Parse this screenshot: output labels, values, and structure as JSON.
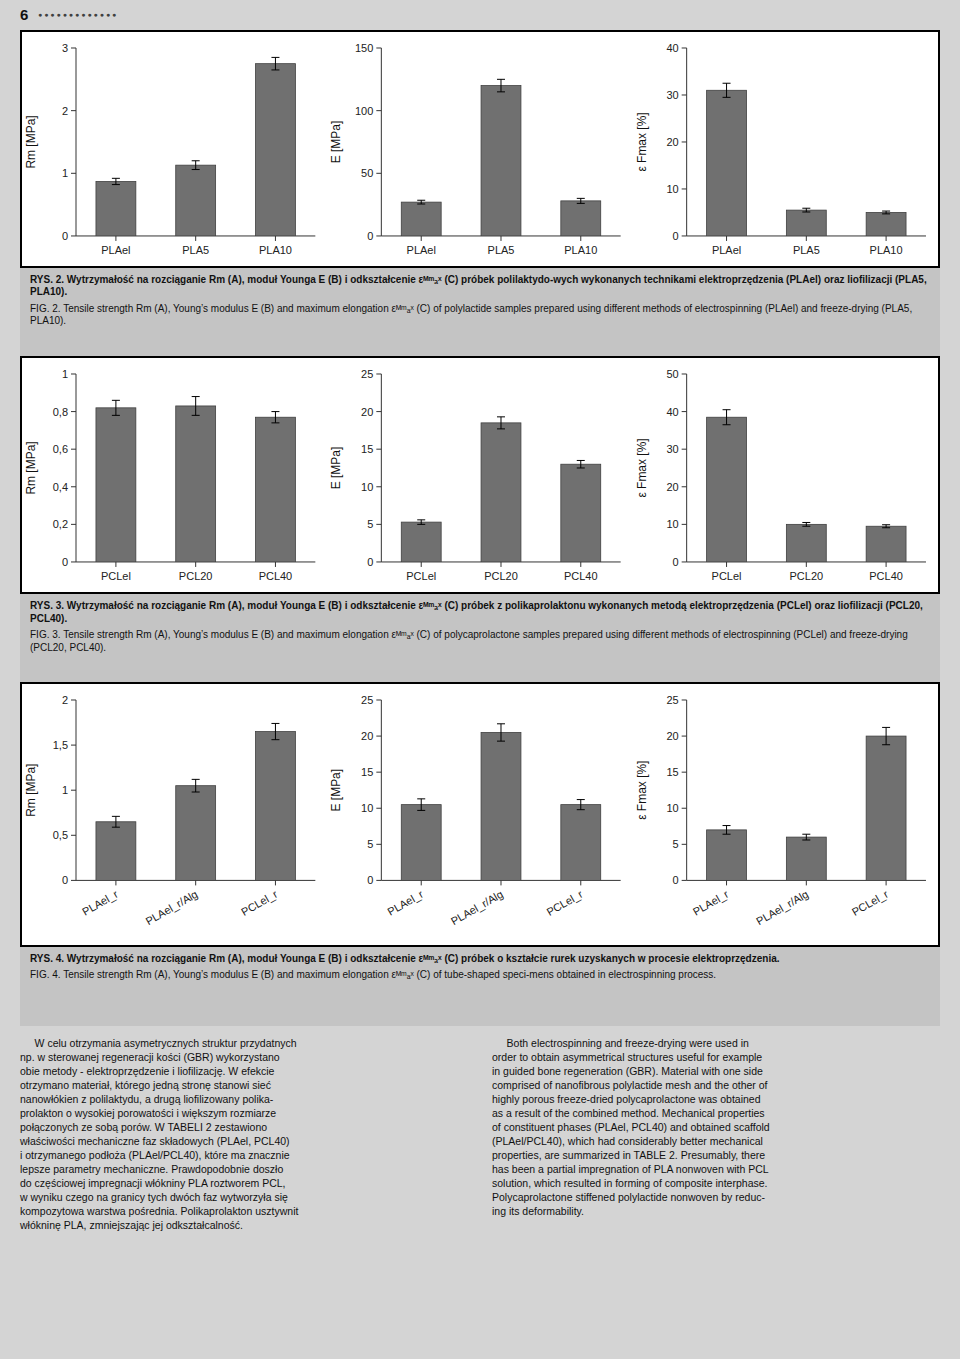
{
  "page_number": "6",
  "ornament": "● ● ● ● ● ● ● ● ● ● ● ● ●",
  "chart_data": [
    {
      "type": "bar",
      "ylabel": "Rm [MPa]",
      "categories": [
        "PLAel",
        "PLA5",
        "PLA10"
      ],
      "values": [
        0.87,
        1.13,
        2.75
      ],
      "errors": [
        0.05,
        0.07,
        0.1
      ],
      "color": "#707070",
      "ylim": [
        0,
        3
      ],
      "yticks": [
        0,
        1,
        2,
        3
      ]
    },
    {
      "type": "bar",
      "ylabel": "E [MPa]",
      "categories": [
        "PLAel",
        "PLA5",
        "PLA10"
      ],
      "values": [
        27.0,
        120.0,
        28.0
      ],
      "errors": [
        1.5,
        5.0,
        2.0
      ],
      "color": "#707070",
      "ylim": [
        0,
        150
      ],
      "yticks": [
        0,
        50,
        100,
        150
      ]
    },
    {
      "type": "bar",
      "ylabel": "ε Fmax [%]",
      "categories": [
        "PLAel",
        "PLA5",
        "PLA10"
      ],
      "values": [
        31.0,
        5.5,
        5.0
      ],
      "errors": [
        1.5,
        0.4,
        0.3
      ],
      "color": "#707070",
      "ylim": [
        0,
        40
      ],
      "yticks": [
        0,
        10,
        20,
        30,
        40
      ]
    },
    {
      "type": "bar",
      "ylabel": "Rm [MPa]",
      "categories": [
        "PCLel",
        "PCL20",
        "PCL40"
      ],
      "values": [
        0.82,
        0.83,
        0.77
      ],
      "errors": [
        0.04,
        0.05,
        0.03
      ],
      "color": "#707070",
      "ylim": [
        0,
        1
      ],
      "yticks": [
        0,
        {
          "value": 0.2,
          "label": "0,2"
        },
        {
          "value": 0.4,
          "label": "0,4"
        },
        {
          "value": 0.6,
          "label": "0,6"
        },
        {
          "value": 0.8,
          "label": "0,8"
        },
        1
      ]
    },
    {
      "type": "bar",
      "ylabel": "E [MPa]",
      "categories": [
        "PCLel",
        "PCL20",
        "PCL40"
      ],
      "values": [
        5.3,
        18.5,
        13.0
      ],
      "errors": [
        0.3,
        0.8,
        0.5
      ],
      "color": "#707070",
      "ylim": [
        0,
        25
      ],
      "yticks": [
        0,
        5,
        10,
        15,
        20,
        25
      ]
    },
    {
      "type": "bar",
      "ylabel": "ε Fmax [%]",
      "categories": [
        "PCLel",
        "PCL20",
        "PCL40"
      ],
      "values": [
        38.5,
        10.0,
        9.5
      ],
      "errors": [
        2.0,
        0.5,
        0.4
      ],
      "color": "#707070",
      "ylim": [
        0,
        50
      ],
      "yticks": [
        0,
        10,
        20,
        30,
        40,
        50
      ]
    },
    {
      "type": "bar",
      "ylabel": "Rm [MPa]",
      "categories": [
        "PLAel_r",
        "PLAel_r/Alg",
        "PCLel_r"
      ],
      "values": [
        0.65,
        1.05,
        1.65
      ],
      "errors": [
        0.06,
        0.07,
        0.09
      ],
      "color": "#707070",
      "ylim": [
        0,
        2
      ],
      "yticks": [
        0,
        {
          "value": 0.5,
          "label": "0,5"
        },
        1,
        {
          "value": 1.5,
          "label": "1,5"
        },
        2
      ]
    },
    {
      "type": "bar",
      "ylabel": "E [MPa]",
      "categories": [
        "PLAel_r",
        "PLAel_r/Alg",
        "PCLel_r"
      ],
      "values": [
        10.5,
        20.5,
        10.5
      ],
      "errors": [
        0.8,
        1.2,
        0.7
      ],
      "color": "#707070",
      "ylim": [
        0,
        25
      ],
      "yticks": [
        0,
        5,
        10,
        15,
        20,
        25
      ]
    },
    {
      "type": "bar",
      "ylabel": "ε Fmax [%]",
      "categories": [
        "PLAel_r",
        "PLAel_r/Alg",
        "PCLel_r"
      ],
      "values": [
        7.0,
        6.0,
        20.0
      ],
      "errors": [
        0.6,
        0.4,
        1.2
      ],
      "color": "#707070",
      "ylim": [
        0,
        25
      ],
      "yticks": [
        0,
        5,
        10,
        15,
        20,
        25
      ]
    }
  ],
  "captions": [
    {
      "bold": "RYS. 2. Wytrzymałość na rozciąganie Rm (A), moduł Younga E (B) i odkształcenie εᴹᵐₐˣ (C) próbek polilaktydo-wych wykonanych technikami elektroprzędzenia (PLAel) oraz liofilizacji (PLA5, PLA10).",
      "text": "FIG. 2. Tensile strength Rm (A), Young’s modulus E (B) and maximum elongation εᴹᵐₐˣ (C) of polylactide samples prepared using different methods of electrospinning (PLAel) and freeze-drying (PLA5, PLA10)."
    },
    {
      "bold": "RYS. 3. Wytrzymałość na rozciąganie Rm (A), moduł Younga E (B) i odkształcenie εᴹᵐₐˣ (C) próbek z polikaprolaktonu wykonanych metodą elektroprzędzenia (PCLel) oraz liofilizacji (PCL20, PCL40).",
      "text": "FIG. 3. Tensile strength Rm (A), Young’s modulus E (B) and maximum elongation εᴹᵐₐˣ (C) of polycaprolactone samples prepared using different methods of electrospinning (PCLel) and freeze-drying (PCL20, PCL40)."
    },
    {
      "bold": "RYS. 4. Wytrzymałość na rozciąganie Rm (A), moduł Younga E (B) i odkształcenie εᴹᵐₐˣ (C) próbek o kształcie rurek uzyskanych w procesie elektroprzędzenia.",
      "text": "FIG. 4. Tensile strength Rm (A), Young’s modulus E (B) and maximum elongation εᴹᵐₐˣ (C) of tube-shaped speci-mens obtained in electrospinning process."
    }
  ],
  "body_text": [
    "     W celu otrzymania asymetrycznych struktur przydatnych\nnp. w sterowanej regeneracji kości (GBR) wykorzystano\nobie metody - elektroprzędzenie i liofilizację. W efekcie\notrzymano materiał, którego jedną stronę stanowi sieć\nnanowłókien z polilaktydu, a drugą liofilizowany polika-\nprolakton o wysokiej porowatości i większym rozmiarze\npołączonych ze sobą porów. W TABELI 2 zestawiono\nwłaściwości mechaniczne faz składowych (PLAel, PCL40)\ni otrzymanego podłoża (PLAel/PCL40), które ma znacznie\nlepsze parametry mechaniczne. Prawdopodobnie doszło\ndo częściowej impregnacji włókniny PLA roztworem PCL,\nw wyniku czego na granicy tych dwóch faz wytworzyła się\nkompozytowa warstwa pośrednia. Polikaprolakton usztywnit\nwłókninę PLA, zmniejszając jej odkształcalność.",
    "     Both electrospinning and freeze-drying were used in\norder to obtain asymmetrical structures useful for example\nin guided bone regeneration (GBR). Material with one side\ncomprised of nanofibrous polylactide mesh and the other of\nhighly porous freeze-dried polycaprolactone was obtained\nas a result of the combined method. Mechanical properties\nof constituent phases (PLAel, PCL40) and obtained scaffold\n(PLAel/PCL40), which had considerably better mechanical\nproperties, are summarized in TABLE 2. Presumably, there\nhas been a partial impregnation of PLA nonwoven with PCL\nsolution, which resulted in forming of composite interphase.\nPolycaprolactone stiffened polylactide nonwoven by reduc-\ning its deformability."
  ]
}
